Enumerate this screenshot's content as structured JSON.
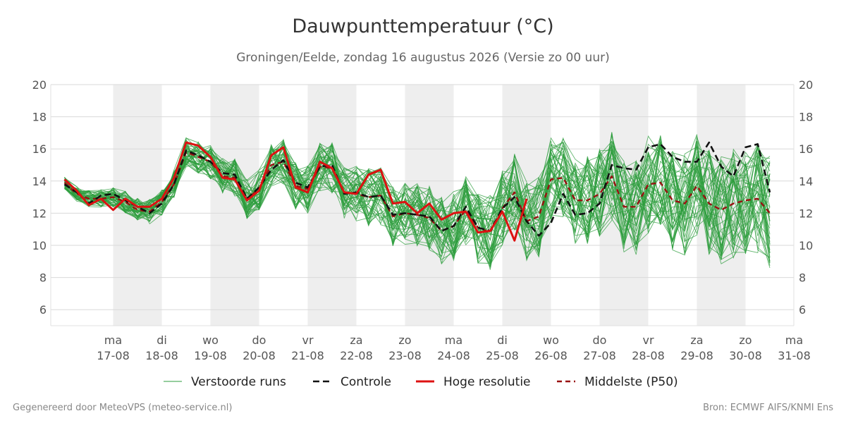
{
  "chart_data": {
    "type": "line",
    "title": "Dauwpunttemperatuur (°C)",
    "subtitle": "Groningen/Eelde, zondag 16 augustus 2026 (Versie zo 00 uur)",
    "ylim": [
      5,
      20
    ],
    "yticks": [
      6,
      8,
      10,
      12,
      14,
      16,
      18,
      20
    ],
    "x_start_label": "2026-08-16 12:00",
    "x_day_labels": [
      {
        "day": "ma",
        "date": "17-08"
      },
      {
        "day": "di",
        "date": "18-08"
      },
      {
        "day": "wo",
        "date": "19-08"
      },
      {
        "day": "do",
        "date": "20-08"
      },
      {
        "day": "vr",
        "date": "21-08"
      },
      {
        "day": "za",
        "date": "22-08"
      },
      {
        "day": "zo",
        "date": "23-08"
      },
      {
        "day": "ma",
        "date": "24-08"
      },
      {
        "day": "di",
        "date": "25-08"
      },
      {
        "day": "wo",
        "date": "26-08"
      },
      {
        "day": "do",
        "date": "27-08"
      },
      {
        "day": "vr",
        "date": "28-08"
      },
      {
        "day": "za",
        "date": "29-08"
      },
      {
        "day": "zo",
        "date": "30-08"
      },
      {
        "day": "ma",
        "date": "31-08"
      }
    ],
    "grid": true,
    "legend_position": "bottom",
    "step_hours": 6,
    "series": [
      {
        "name": "Controle",
        "color": "#111111",
        "style": "dashed",
        "values": [
          13.8,
          13.3,
          12.6,
          13.1,
          13.2,
          12.8,
          12.4,
          12.0,
          12.6,
          13.8,
          15.9,
          15.6,
          15.2,
          14.5,
          14.4,
          12.9,
          13.6,
          14.7,
          15.3,
          13.9,
          13.6,
          14.9,
          15.0,
          13.2,
          13.3,
          13.0,
          13.1,
          11.9,
          12.0,
          11.9,
          11.8,
          10.9,
          11.2,
          12.4,
          11.1,
          10.9,
          12.3,
          13.0,
          11.5,
          10.6,
          11.4,
          13.2,
          11.9,
          12.0,
          12.6,
          15.0,
          14.8,
          14.7,
          16.1,
          16.3,
          15.5,
          15.2,
          15.2,
          16.4,
          14.9,
          14.3,
          16.1,
          16.3,
          13.3
        ]
      },
      {
        "name": "Hoge resolutie",
        "color": "#dd1111",
        "style": "solid",
        "values": [
          14.1,
          13.4,
          12.5,
          12.9,
          12.2,
          12.9,
          12.4,
          12.4,
          12.9,
          14.2,
          16.4,
          16.2,
          15.5,
          14.2,
          14.1,
          12.8,
          13.4,
          15.6,
          16.1,
          13.6,
          13.3,
          15.2,
          14.8,
          13.3,
          13.2,
          14.4,
          14.7,
          12.6,
          12.7,
          12.0,
          12.6,
          11.6,
          12.0,
          12.1,
          10.8,
          10.9,
          12.1,
          10.3,
          12.9
        ]
      },
      {
        "name": "Middelste (P50)",
        "color": "#991111",
        "style": "dashed",
        "values": [
          13.9,
          13.2,
          12.9,
          12.9,
          13.0,
          12.7,
          12.2,
          12.1,
          12.7,
          13.8,
          15.8,
          15.5,
          15.2,
          14.3,
          14.2,
          12.9,
          13.5,
          15.0,
          15.2,
          13.7,
          13.5,
          14.9,
          14.8,
          13.3,
          13.2,
          13.0,
          13.1,
          11.8,
          12.0,
          11.9,
          11.7,
          10.9,
          11.2,
          12.2,
          11.1,
          10.8,
          12.3,
          13.3,
          11.5,
          11.8,
          14.1,
          14.2,
          12.8,
          12.8,
          13.2,
          14.3,
          12.4,
          12.4,
          13.8,
          13.9,
          12.8,
          12.6,
          13.7,
          12.6,
          12.2,
          12.6,
          12.8,
          12.9,
          12.0
        ]
      }
    ]
  },
  "legend": {
    "ensemble": "Verstoorde runs",
    "control": "Controle",
    "highres": "Hoge resolutie",
    "median": "Middelste (P50)"
  },
  "colors": {
    "ensemble": "#2e9e3e",
    "control": "#111111",
    "highres": "#dd1111",
    "median": "#991111",
    "weekend_band": "#eeeeee"
  },
  "footer": {
    "left": "Gegenereerd door MeteoVPS (meteo-service.nl)",
    "right": "Bron: ECMWF AIFS/KNMI Ens"
  }
}
